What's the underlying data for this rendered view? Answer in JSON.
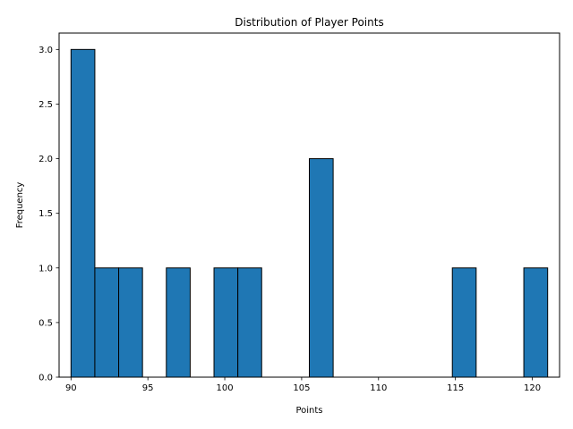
{
  "chart_data": {
    "type": "bar",
    "title": "Distribution of Player Points",
    "xlabel": "Points",
    "ylabel": "Frequency",
    "bin_start": 90,
    "bin_width": 1.55,
    "counts": [
      3,
      1,
      1,
      0,
      1,
      0,
      1,
      1,
      0,
      0,
      2,
      0,
      0,
      0,
      0,
      0,
      1,
      0,
      0,
      1
    ],
    "xlim": [
      89.225,
      121.775
    ],
    "ylim": [
      0,
      3.15
    ],
    "xticks": [
      90,
      95,
      100,
      105,
      110,
      115,
      120
    ],
    "xtick_labels": [
      "90",
      "95",
      "100",
      "105",
      "110",
      "115",
      "120"
    ],
    "yticks": [
      0,
      0.5,
      1,
      1.5,
      2,
      2.5,
      3
    ],
    "ytick_labels": [
      "0.0",
      "0.5",
      "1.0",
      "1.5",
      "2.0",
      "2.5",
      "3.0"
    ],
    "grid": false,
    "bar_color": "#1f77b4",
    "edge_color": "#000000"
  }
}
